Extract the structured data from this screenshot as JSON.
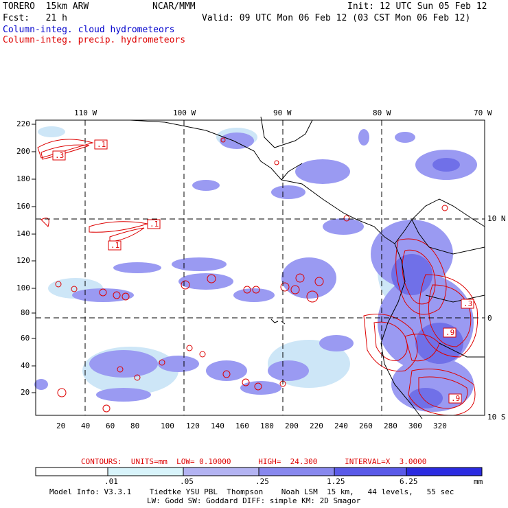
{
  "header": {
    "model": "TORERO  15km ARW",
    "center": "NCAR/MMM",
    "init": "Init: 12 UTC Sun 05 Feb 12",
    "fcst": "Fcst:   21 h",
    "valid": "Valid: 09 UTC Mon 06 Feb 12 (03 CST Mon 06 Feb 12)",
    "field1": "Column-integ. cloud hydrometeors",
    "field2": "Column-integ. precip. hydrometeors"
  },
  "map": {
    "lon_labels": [
      "110 W",
      "100 W",
      "90 W",
      "80 W",
      "70 W"
    ],
    "lat_labels": [
      "10 N",
      "0",
      "10 S"
    ],
    "y_ticks": [
      "220",
      "200",
      "180",
      "160",
      "140",
      "120",
      "100",
      "80",
      "60",
      "40",
      "20"
    ],
    "x_ticks": [
      "20",
      "40",
      "60",
      "80",
      "100",
      "120",
      "140",
      "160",
      "180",
      "200",
      "220",
      "240",
      "260",
      "280",
      "300",
      "320"
    ],
    "contour_labels": [
      ".1",
      ".3",
      ".1",
      ".1",
      ".3",
      ".9",
      ".9"
    ],
    "colors": {
      "cloud_fill": "#9a9af2",
      "cloud_light": "#cde6f7",
      "precip_contour": "#dd0000",
      "coast": "#000000"
    }
  },
  "footer": {
    "contours": "CONTOURS:  UNITS=mm  LOW= 0.10000      HIGH=  24.300      INTERVAL=X  3.0000",
    "colorbar": {
      "labels": [
        ".01",
        ".05",
        ".25",
        "1.25",
        "6.25",
        "mm"
      ],
      "colors": [
        "#ffffff",
        "#d8f4fb",
        "#b3b3f2",
        "#8888ee",
        "#5a5ae8",
        "#2b2be0"
      ]
    },
    "model_info_1": "Model Info: V3.3.1    Tiedtke YSU PBL  Thompson    Noah LSM  15 km,   44 levels,   55 sec",
    "model_info_2": "LW: Godd SW: Goddard DIFF: simple KM: 2D Smagor"
  }
}
